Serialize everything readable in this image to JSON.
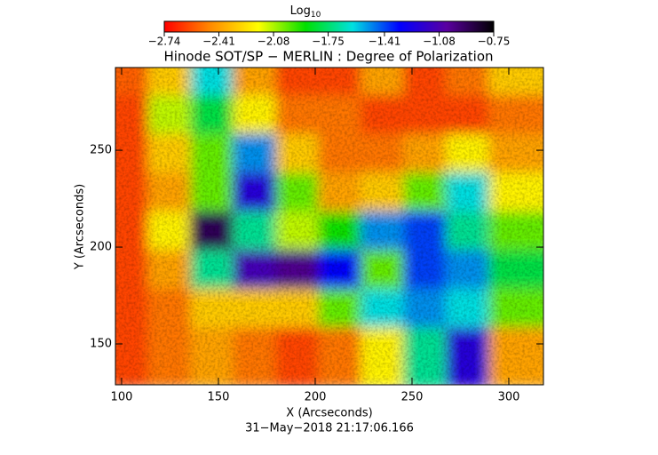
{
  "chart_data": {
    "type": "heatmap",
    "title": "Hinode SOT/SP − MERLIN : Degree of Polarization",
    "x_label": "X (Arcseconds)",
    "y_label": "Y (Arcseconds)",
    "footer": "31−May−2018 21:17:06.166",
    "colorbar_label": "Log",
    "colorbar_label_sub": "10",
    "clim": [
      -2.74,
      -0.75
    ],
    "cticks": [
      {
        "value": -2.74,
        "label": "−2.74"
      },
      {
        "value": -2.41,
        "label": "−2.41"
      },
      {
        "value": -2.08,
        "label": "−2.08"
      },
      {
        "value": -1.75,
        "label": "−1.75"
      },
      {
        "value": -1.41,
        "label": "−1.41"
      },
      {
        "value": -1.08,
        "label": "−1.08"
      },
      {
        "value": -0.75,
        "label": "−0.75"
      }
    ],
    "colormap": [
      "#ff0000",
      "#ff8c00",
      "#ffff00",
      "#00e000",
      "#00e0e0",
      "#0000ff",
      "#5a00a0",
      "#000000"
    ],
    "xlim": [
      96.8,
      317.9
    ],
    "ylim": [
      128.9,
      292.7
    ],
    "xticks": [
      100,
      150,
      200,
      250,
      300
    ],
    "yticks": [
      150,
      200,
      250
    ],
    "x": [
      108,
      130,
      152,
      174,
      196,
      218,
      240,
      262,
      284,
      306
    ],
    "y": [
      283,
      263,
      243,
      223,
      203,
      183,
      163,
      143
    ],
    "z": [
      [
        -2.55,
        -2.3,
        -1.6,
        -2.4,
        -2.6,
        -2.6,
        -2.4,
        -2.6,
        -2.5,
        -2.3
      ],
      [
        -2.6,
        -2.1,
        -1.8,
        -2.2,
        -2.5,
        -2.5,
        -2.6,
        -2.6,
        -2.6,
        -2.5
      ],
      [
        -2.6,
        -2.3,
        -2.0,
        -1.5,
        -2.3,
        -2.5,
        -2.5,
        -2.4,
        -2.2,
        -2.4
      ],
      [
        -2.6,
        -2.4,
        -2.0,
        -1.2,
        -2.0,
        -2.4,
        -2.3,
        -2.0,
        -1.6,
        -2.2
      ],
      [
        -2.6,
        -2.2,
        -0.9,
        -1.7,
        -2.1,
        -1.9,
        -1.5,
        -1.4,
        -1.7,
        -2.0
      ],
      [
        -2.6,
        -2.4,
        -1.7,
        -1.1,
        -1.0,
        -1.3,
        -2.0,
        -1.4,
        -1.5,
        -1.8
      ],
      [
        -2.6,
        -2.5,
        -2.3,
        -2.3,
        -2.3,
        -2.0,
        -1.6,
        -1.5,
        -1.6,
        -2.0
      ],
      [
        -2.6,
        -2.5,
        -2.4,
        -2.5,
        -2.6,
        -2.5,
        -2.2,
        -1.7,
        -1.2,
        -2.4
      ]
    ]
  }
}
